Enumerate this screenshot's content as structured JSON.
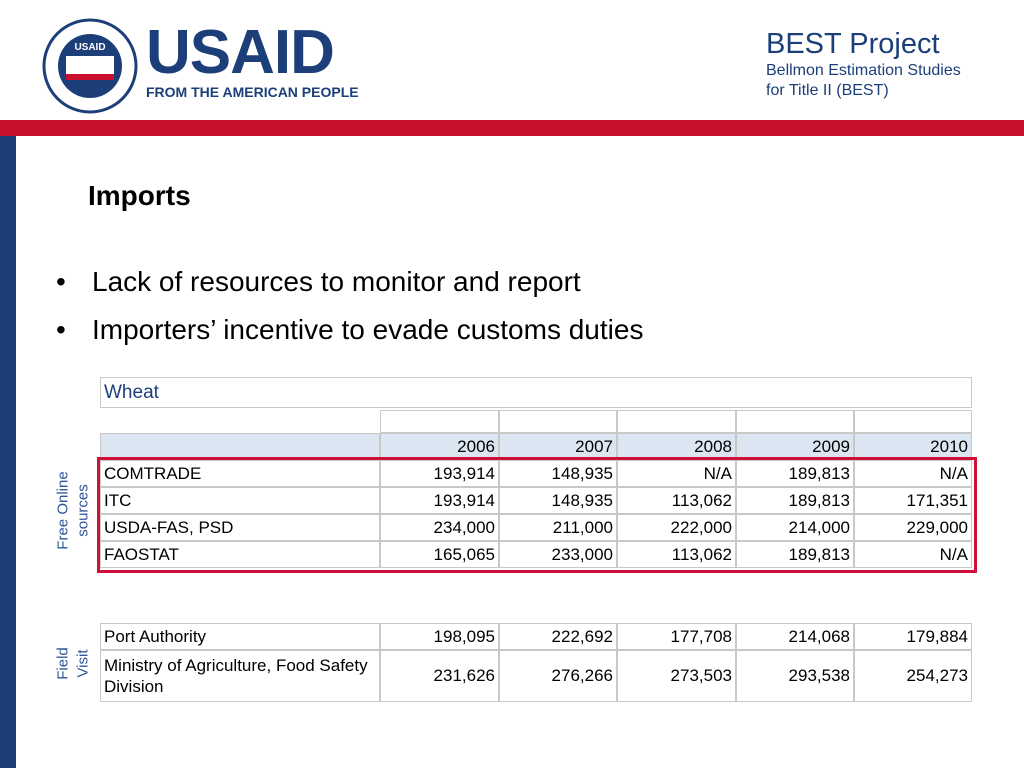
{
  "header": {
    "seal_label": "USAID",
    "logo": "USAID",
    "tagline": "FROM THE AMERICAN PEOPLE",
    "project_title": "BEST Project",
    "project_sub1": "Bellmon Estimation Studies",
    "project_sub2": "for Title II (BEST)"
  },
  "title": "Imports",
  "bullets": [
    "Lack of resources to monitor and report",
    "Importers’ incentive to evade customs duties"
  ],
  "table": {
    "caption": "Wheat",
    "years": [
      "2006",
      "2007",
      "2008",
      "2009",
      "2010"
    ],
    "group_labels": [
      [
        "Free Online",
        "sources"
      ],
      [
        "Field",
        "Visit"
      ]
    ],
    "rows": [
      [
        "COMTRADE",
        "193,914",
        "148,935",
        "N/A",
        "189,813",
        "N/A"
      ],
      [
        "ITC",
        "193,914",
        "148,935",
        "113,062",
        "189,813",
        "171,351"
      ],
      [
        "USDA-FAS, PSD",
        "234,000",
        "211,000",
        "222,000",
        "214,000",
        "229,000"
      ],
      [
        "FAOSTAT",
        "165,065",
        "233,000",
        "113,062",
        "189,813",
        "N/A"
      ]
    ],
    "rows2": [
      [
        "Port Authority",
        "198,095",
        "222,692",
        "177,708",
        "214,068",
        "179,884"
      ],
      [
        "Ministry of Agriculture, Food Safety Division",
        "231,626",
        "276,266",
        "273,503",
        "293,538",
        "254,273"
      ]
    ]
  }
}
